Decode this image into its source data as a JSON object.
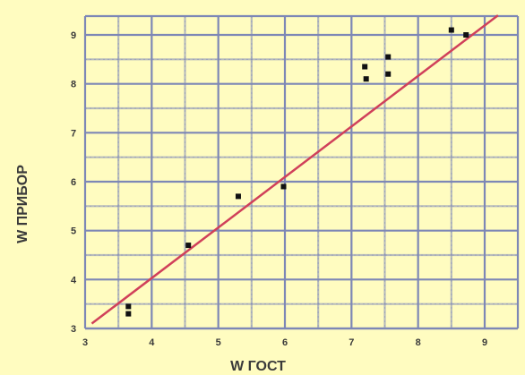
{
  "chart_data": {
    "type": "scatter",
    "title": "",
    "xlabel": "W ГОСТ",
    "ylabel": "W ПРИБОР",
    "xlim": [
      3,
      9.2
    ],
    "ylim": [
      3,
      9.5
    ],
    "x_ticks": [
      3,
      4,
      5,
      6,
      7,
      8,
      9
    ],
    "y_ticks": [
      3,
      4,
      5,
      6,
      7,
      8,
      9
    ],
    "x_tick_labels": [
      "3",
      "4",
      "5",
      "6",
      "7",
      "8",
      "9"
    ],
    "y_tick_labels": [
      "3",
      "4",
      "5",
      "6",
      "7",
      "8",
      "9"
    ],
    "grid": true,
    "series": [
      {
        "points": [
          {
            "x": 3.65,
            "y": 3.45
          },
          {
            "x": 3.65,
            "y": 3.3
          },
          {
            "x": 4.55,
            "y": 4.7
          },
          {
            "x": 5.3,
            "y": 5.7
          },
          {
            "x": 5.98,
            "y": 5.9
          },
          {
            "x": 7.2,
            "y": 8.35
          },
          {
            "x": 7.22,
            "y": 8.1
          },
          {
            "x": 7.55,
            "y": 8.55
          },
          {
            "x": 7.55,
            "y": 8.2
          },
          {
            "x": 8.5,
            "y": 9.1
          },
          {
            "x": 8.72,
            "y": 9.0
          }
        ],
        "color": "#111111"
      }
    ],
    "fit_line": {
      "x": [
        3.1,
        9.2
      ],
      "y": [
        3.1,
        9.4
      ],
      "color": "#d0405a"
    },
    "colors": {
      "background": "#fffcc0",
      "grid": "#7d87b6"
    }
  }
}
